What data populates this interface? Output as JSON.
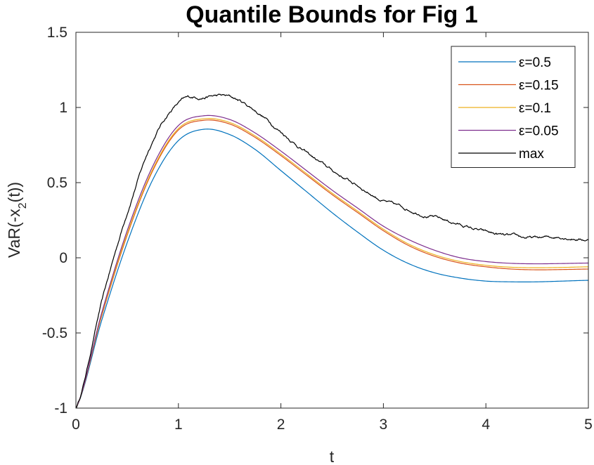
{
  "chart_data": {
    "type": "line",
    "title": "Quantile Bounds for Fig 1",
    "xlabel": "t",
    "ylabel": "VaR(-x2(t))",
    "ylabel_parts": [
      "VaR(-x",
      "2",
      "(t))"
    ],
    "xlim": [
      0,
      5
    ],
    "ylim": [
      -1,
      1.5
    ],
    "xticks": [
      0,
      1,
      2,
      3,
      4,
      5
    ],
    "yticks": [
      -1,
      -0.5,
      0,
      0.5,
      1,
      1.5
    ],
    "xtick_labels": [
      "0",
      "1",
      "2",
      "3",
      "4",
      "5"
    ],
    "ytick_labels": [
      "-1",
      "-0.5",
      "0",
      "0.5",
      "1",
      "1.5"
    ],
    "grid": false,
    "legend_position": "top-right",
    "x": [
      0,
      0.25,
      0.5,
      0.75,
      1.0,
      1.25,
      1.5,
      1.75,
      2.0,
      2.25,
      2.5,
      2.75,
      3.0,
      3.25,
      3.5,
      3.75,
      4.0,
      4.25,
      4.5,
      4.75,
      5.0
    ],
    "series": [
      {
        "name": "ε=0.5",
        "color": "#0072BD",
        "values": [
          -1.0,
          -0.42,
          0.1,
          0.52,
          0.78,
          0.855,
          0.82,
          0.72,
          0.58,
          0.44,
          0.3,
          0.17,
          0.05,
          -0.04,
          -0.1,
          -0.135,
          -0.155,
          -0.16,
          -0.16,
          -0.155,
          -0.15
        ]
      },
      {
        "name": "ε=0.15",
        "color": "#D95319",
        "values": [
          -1.0,
          -0.39,
          0.15,
          0.58,
          0.85,
          0.915,
          0.89,
          0.8,
          0.68,
          0.55,
          0.42,
          0.3,
          0.18,
          0.08,
          0.01,
          -0.035,
          -0.06,
          -0.075,
          -0.08,
          -0.078,
          -0.075
        ]
      },
      {
        "name": "ε=0.1",
        "color": "#EDB120",
        "values": [
          -1.0,
          -0.38,
          0.16,
          0.59,
          0.86,
          0.925,
          0.9,
          0.81,
          0.69,
          0.56,
          0.43,
          0.31,
          0.19,
          0.09,
          0.02,
          -0.025,
          -0.05,
          -0.063,
          -0.066,
          -0.064,
          -0.06
        ]
      },
      {
        "name": "ε=0.05",
        "color": "#7E2F8E",
        "values": [
          -1.0,
          -0.37,
          0.18,
          0.61,
          0.88,
          0.945,
          0.92,
          0.83,
          0.71,
          0.58,
          0.45,
          0.33,
          0.21,
          0.12,
          0.05,
          0.0,
          -0.025,
          -0.037,
          -0.04,
          -0.038,
          -0.035
        ]
      },
      {
        "name": "max",
        "color": "#000000",
        "noisy": true,
        "values": [
          -1.0,
          -0.3,
          0.3,
          0.78,
          1.03,
          1.07,
          1.07,
          0.98,
          0.84,
          0.7,
          0.58,
          0.48,
          0.38,
          0.32,
          0.27,
          0.22,
          0.17,
          0.14,
          0.13,
          0.14,
          0.12
        ]
      }
    ]
  }
}
